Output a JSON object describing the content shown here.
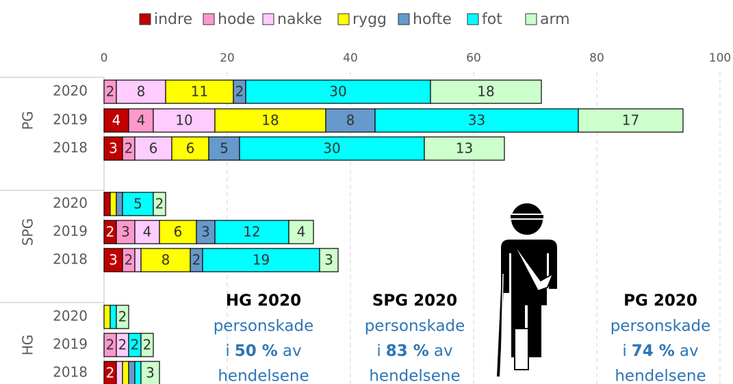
{
  "chart_data": {
    "type": "stacked-bar-horizontal",
    "groups": [
      "PG",
      "SPG",
      "HG"
    ],
    "categories": [
      "2020",
      "2019",
      "2018",
      "2020",
      "2019",
      "2018",
      "2020",
      "2019",
      "2018"
    ],
    "series": [
      {
        "name": "indre",
        "color": "#c00000",
        "values": [
          0,
          4,
          3,
          1,
          2,
          3,
          0,
          0,
          2
        ]
      },
      {
        "name": "hode",
        "color": "#ff99cc",
        "values": [
          2,
          4,
          2,
          0,
          3,
          2,
          0,
          2,
          0
        ]
      },
      {
        "name": "nakke",
        "color": "#ffccff",
        "values": [
          8,
          10,
          6,
          0,
          4,
          1,
          0,
          2,
          1
        ]
      },
      {
        "name": "rygg",
        "color": "#ffff00",
        "values": [
          11,
          18,
          6,
          1,
          6,
          8,
          1,
          0,
          1
        ]
      },
      {
        "name": "hofte",
        "color": "#6699cc",
        "values": [
          2,
          8,
          5,
          1,
          3,
          2,
          0,
          0,
          1
        ]
      },
      {
        "name": "fot",
        "color": "#00ffff",
        "values": [
          30,
          33,
          30,
          5,
          12,
          19,
          1,
          2,
          1
        ]
      },
      {
        "name": "arm",
        "color": "#ccffcc",
        "values": [
          18,
          17,
          13,
          2,
          4,
          3,
          2,
          2,
          3
        ]
      }
    ],
    "xlim": [
      0,
      100
    ],
    "xticks": [
      0,
      20,
      40,
      60,
      80,
      100
    ],
    "grid": true,
    "legend": "top",
    "annotations": [
      {
        "title": "HG 2020",
        "line1": "personskade",
        "prefix": "i",
        "value": "50 %",
        "suffix": "av",
        "line3": "hendelsene"
      },
      {
        "title": "SPG 2020",
        "line1": "personskade",
        "prefix": "i",
        "value": "83 %",
        "suffix": "av",
        "line3": "hendelsene"
      },
      {
        "title": "PG 2020",
        "line1": "personskade",
        "prefix": "i",
        "value": "74 %",
        "suffix": "av",
        "line3": "hendelsene"
      }
    ]
  }
}
